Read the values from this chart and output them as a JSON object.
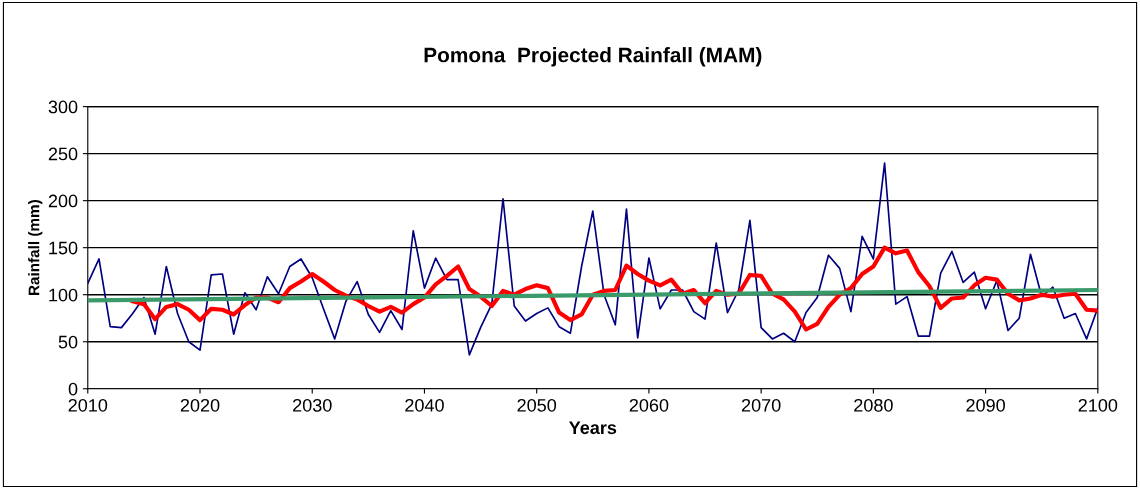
{
  "chart_data": {
    "type": "line",
    "title": "Pomona  Projected Rainfall (MAM)",
    "xlabel": "Years",
    "ylabel": "Rainfall (mm)",
    "xlim": [
      2010,
      2100
    ],
    "xticks": [
      2010,
      2020,
      2030,
      2040,
      2050,
      2060,
      2070,
      2080,
      2090,
      2100
    ],
    "ylim": [
      0,
      300
    ],
    "yticks": [
      0,
      50,
      100,
      150,
      200,
      250,
      300
    ],
    "grid": "y",
    "legend": false,
    "marker": "none",
    "line_style": "solid",
    "series": [
      {
        "color": "#000080",
        "x": [
          2010,
          2011,
          2012,
          2013,
          2014,
          2015,
          2016,
          2017,
          2018,
          2019,
          2020,
          2021,
          2022,
          2023,
          2024,
          2025,
          2026,
          2027,
          2028,
          2029,
          2030,
          2031,
          2032,
          2033,
          2034,
          2035,
          2036,
          2037,
          2038,
          2039,
          2040,
          2041,
          2042,
          2043,
          2044,
          2045,
          2046,
          2047,
          2048,
          2049,
          2050,
          2051,
          2052,
          2053,
          2054,
          2055,
          2056,
          2057,
          2058,
          2059,
          2060,
          2061,
          2062,
          2063,
          2064,
          2065,
          2066,
          2067,
          2068,
          2069,
          2070,
          2071,
          2072,
          2073,
          2074,
          2075,
          2076,
          2077,
          2078,
          2079,
          2080,
          2081,
          2082,
          2083,
          2084,
          2085,
          2086,
          2087,
          2088,
          2089,
          2090,
          2091,
          2092,
          2093,
          2094,
          2095,
          2096,
          2097,
          2098,
          2099,
          2100
        ],
        "values": [
          112,
          138,
          66,
          65,
          80,
          97,
          58,
          130,
          80,
          50,
          41,
          121,
          122,
          58,
          102,
          84,
          119,
          101,
          130,
          138,
          118,
          85,
          53,
          93,
          114,
          79,
          60,
          83,
          63,
          168,
          107,
          139,
          116,
          116,
          36,
          65,
          90,
          202,
          88,
          72,
          80,
          86,
          66,
          59,
          130,
          189,
          100,
          68,
          191,
          54,
          139,
          85,
          105,
          105,
          82,
          74,
          155,
          81,
          105,
          179,
          65,
          53,
          59,
          50,
          81,
          97,
          142,
          128,
          82,
          162,
          138,
          240,
          90,
          98,
          56,
          56,
          123,
          146,
          113,
          124,
          85,
          115,
          62,
          75,
          143,
          98,
          108,
          75,
          80,
          53,
          86
        ]
      },
      {
        "color": "#ff0000",
        "x": [
          2014,
          2015,
          2016,
          2017,
          2018,
          2019,
          2020,
          2021,
          2022,
          2023,
          2024,
          2025,
          2026,
          2027,
          2028,
          2029,
          2030,
          2031,
          2032,
          2033,
          2034,
          2035,
          2036,
          2037,
          2038,
          2039,
          2040,
          2041,
          2042,
          2043,
          2044,
          2045,
          2046,
          2047,
          2048,
          2049,
          2050,
          2051,
          2052,
          2053,
          2054,
          2055,
          2056,
          2057,
          2058,
          2059,
          2060,
          2061,
          2062,
          2063,
          2064,
          2065,
          2066,
          2067,
          2068,
          2069,
          2070,
          2071,
          2072,
          2073,
          2074,
          2075,
          2076,
          2077,
          2078,
          2079,
          2080,
          2081,
          2082,
          2083,
          2084,
          2085,
          2086,
          2087,
          2088,
          2089,
          2090,
          2091,
          2092,
          2093,
          2094,
          2095,
          2096,
          2097,
          2098,
          2099,
          2100
        ],
        "values": [
          93,
          90,
          74,
          87,
          90,
          84,
          73,
          85,
          84,
          79,
          89,
          97,
          97,
          92,
          107,
          114,
          122,
          114,
          105,
          99,
          95,
          88,
          82,
          87,
          81,
          90,
          97,
          111,
          120,
          130,
          106,
          98,
          88,
          104,
          100,
          106,
          110,
          107,
          81,
          73,
          79,
          100,
          104,
          105,
          131,
          122,
          115,
          110,
          116,
          101,
          105,
          91,
          104,
          100,
          101,
          121,
          120,
          101,
          95,
          82,
          63,
          69,
          87,
          100,
          107,
          122,
          130,
          150,
          144,
          147,
          124,
          109,
          86,
          96,
          97,
          110,
          118,
          116,
          101,
          94,
          96,
          100,
          98,
          100,
          101,
          84,
          83
        ]
      },
      {
        "color": "#3a9a6a",
        "x": [
          2010,
          2100
        ],
        "values": [
          94,
          105
        ]
      }
    ]
  }
}
